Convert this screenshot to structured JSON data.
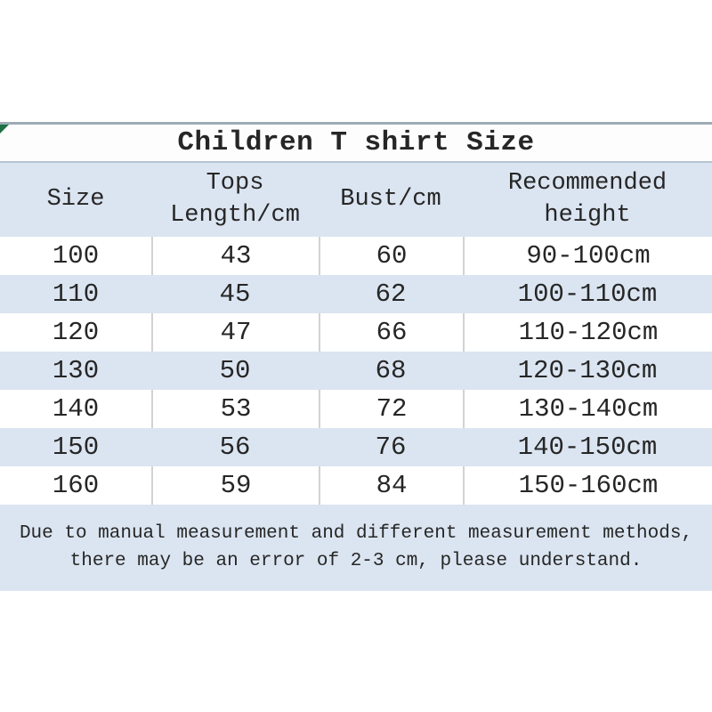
{
  "colors": {
    "alt_row_blue": "#dbe5f1",
    "text": "#262626",
    "grid_line": "#d2d2d2",
    "top_border": "#9dabb5",
    "corner_marker_green": "#1e7145"
  },
  "table": {
    "title": "Children T shirt Size",
    "columns": [
      {
        "label": "Size",
        "lines": [
          "Size"
        ]
      },
      {
        "label": "Tops Length/cm",
        "lines": [
          "Tops",
          "Length/cm"
        ]
      },
      {
        "label": "Bust/cm",
        "lines": [
          "Bust/cm"
        ]
      },
      {
        "label": "Recommended height",
        "lines": [
          "Recommended",
          "height"
        ]
      }
    ],
    "rows": [
      [
        "100",
        "43",
        "60",
        "90-100cm"
      ],
      [
        "110",
        "45",
        "62",
        "100-110cm"
      ],
      [
        "120",
        "47",
        "66",
        "110-120cm"
      ],
      [
        "130",
        "50",
        "68",
        "120-130cm"
      ],
      [
        "140",
        "53",
        "72",
        "130-140cm"
      ],
      [
        "150",
        "56",
        "76",
        "140-150cm"
      ],
      [
        "160",
        "59",
        "84",
        "150-160cm"
      ]
    ]
  },
  "footer_note": {
    "lines": [
      "Due to manual measurement and different measurement methods,",
      "there may be an error of 2-3 cm, please understand."
    ]
  }
}
